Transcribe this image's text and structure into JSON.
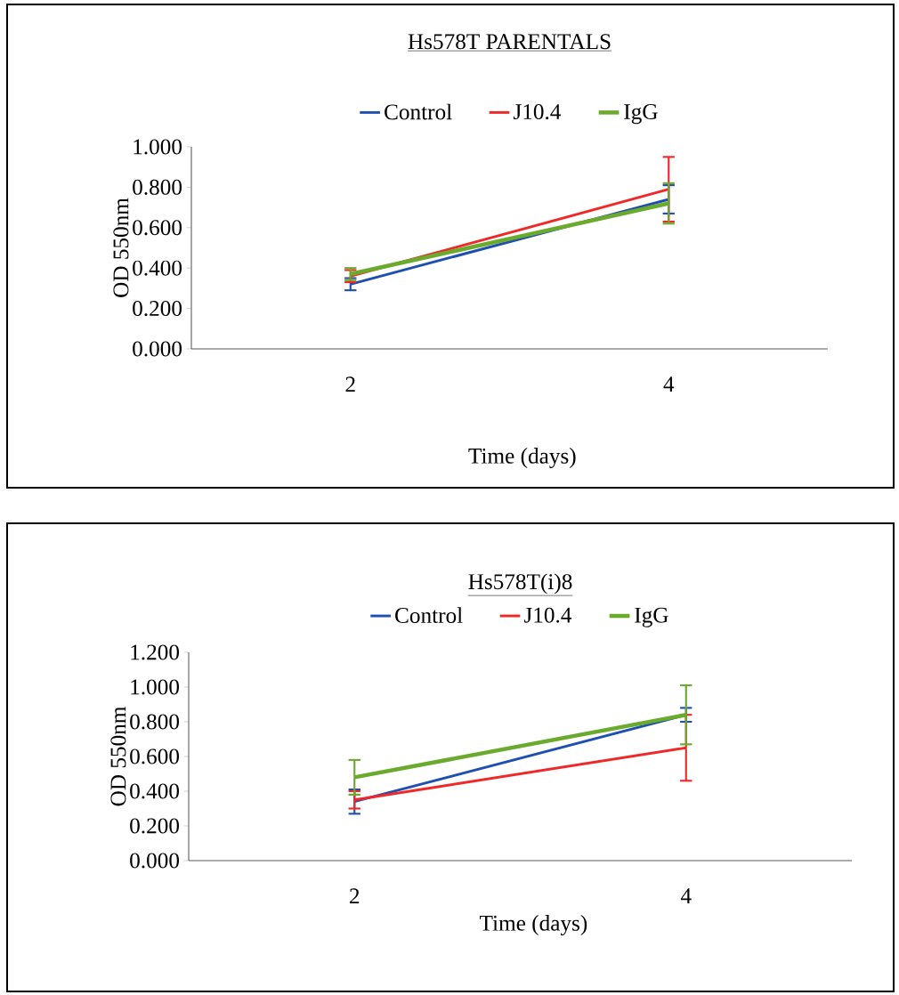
{
  "chart_data": [
    {
      "type": "line",
      "title": "Hs578T PARENTALS",
      "xlabel": "Time (days)",
      "ylabel": "OD 550nm",
      "categories": [
        "2",
        "4"
      ],
      "series": [
        {
          "name": "Control",
          "color": "#1f4fb0",
          "values": [
            0.32,
            0.74
          ],
          "errors": [
            0.03,
            0.07
          ]
        },
        {
          "name": "J10.4",
          "color": "#f02828",
          "values": [
            0.36,
            0.79
          ],
          "errors": [
            0.03,
            0.16
          ]
        },
        {
          "name": "IgG",
          "color": "#6aaa2c",
          "values": [
            0.37,
            0.72
          ],
          "errors": [
            0.03,
            0.1
          ]
        }
      ],
      "ylim": [
        0,
        1.0
      ],
      "yticks": [
        {
          "value": 0,
          "label": "0.000"
        },
        {
          "value": 0.2,
          "label": "0.200"
        },
        {
          "value": 0.4,
          "label": "0.400"
        },
        {
          "value": 0.6,
          "label": "0.600"
        },
        {
          "value": 0.8,
          "label": "0.800"
        },
        {
          "value": 1.0,
          "label": "1.000"
        }
      ],
      "legend": "top",
      "grid": false,
      "marker": "none",
      "line_style": "solid"
    },
    {
      "type": "line",
      "title": "Hs578T(i)8",
      "xlabel": "Time (days)",
      "ylabel": "OD 550nm",
      "categories": [
        "2",
        "4"
      ],
      "series": [
        {
          "name": "Control",
          "color": "#1f4fb0",
          "values": [
            0.34,
            0.84
          ],
          "errors": [
            0.07,
            0.04
          ]
        },
        {
          "name": "J10.4",
          "color": "#f02828",
          "values": [
            0.35,
            0.65
          ],
          "errors": [
            0.05,
            0.19
          ]
        },
        {
          "name": "IgG",
          "color": "#6aaa2c",
          "values": [
            0.48,
            0.84
          ],
          "errors": [
            0.1,
            0.17
          ]
        }
      ],
      "ylim": [
        0,
        1.2
      ],
      "yticks": [
        {
          "value": 0,
          "label": "0.000"
        },
        {
          "value": 0.2,
          "label": "0.200"
        },
        {
          "value": 0.4,
          "label": "0.400"
        },
        {
          "value": 0.6,
          "label": "0.600"
        },
        {
          "value": 0.8,
          "label": "0.800"
        },
        {
          "value": 1.0,
          "label": "1.000"
        },
        {
          "value": 1.2,
          "label": "1.200"
        }
      ],
      "legend": "top",
      "grid": false,
      "marker": "none",
      "line_style": "solid"
    }
  ]
}
